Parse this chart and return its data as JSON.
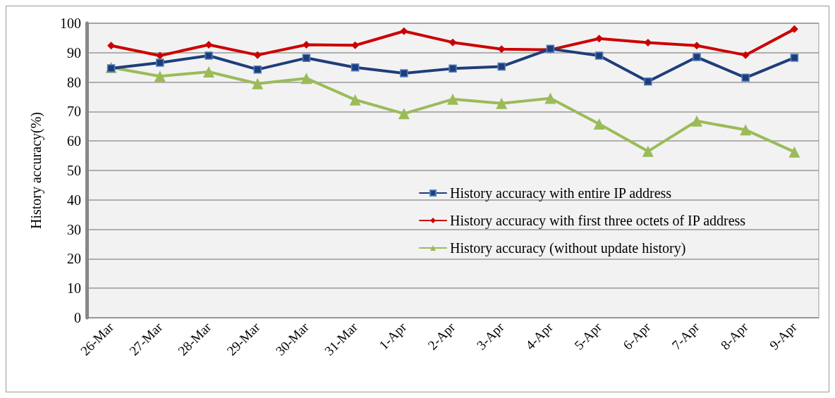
{
  "chart_data": {
    "type": "line",
    "ylabel": "History accuracy(%)",
    "categories": [
      "26-Mar",
      "27-Mar",
      "28-Mar",
      "29-Mar",
      "30-Mar",
      "31-Mar",
      "1-Apr",
      "2-Apr",
      "3-Apr",
      "4-Apr",
      "5-Apr",
      "6-Apr",
      "7-Apr",
      "8-Apr",
      "9-Apr"
    ],
    "series": [
      {
        "name": "History accuracy with entire IP address",
        "color": "#1f3d7a",
        "marker": "square",
        "values": [
          84.7,
          86.6,
          89,
          84.3,
          88.2,
          85,
          83,
          84.6,
          85.3,
          91.3,
          89,
          80.2,
          88.5,
          81.5,
          88.3
        ]
      },
      {
        "name": "History accuracy with first three octets of IP address",
        "color": "#cc0000",
        "marker": "diamond",
        "values": [
          92.4,
          89,
          92.7,
          89.2,
          92.7,
          92.5,
          97.3,
          93.5,
          91.2,
          91,
          94.8,
          93.4,
          92.4,
          89.2,
          98
        ]
      },
      {
        "name": "History accuracy (without update history)",
        "color": "#9bbb59",
        "marker": "triangle",
        "values": [
          85,
          82,
          83.5,
          79.5,
          81.3,
          74,
          69.3,
          74.2,
          72.8,
          74.5,
          65.8,
          56.5,
          66.8,
          63.8,
          56.3
        ]
      }
    ],
    "ylim": [
      0,
      100
    ],
    "yticks": [
      0,
      10,
      20,
      30,
      40,
      50,
      60,
      70,
      80,
      90,
      100
    ],
    "grid": "y",
    "legend": "right",
    "line_style": "solid"
  }
}
